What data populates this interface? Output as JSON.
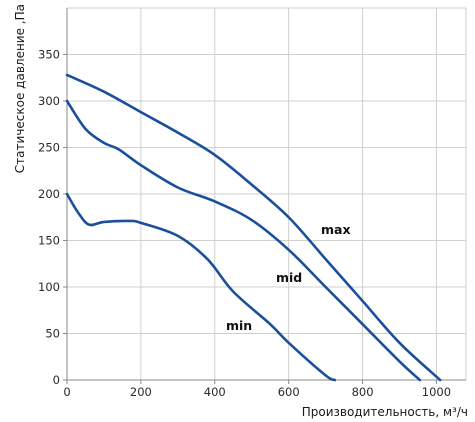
{
  "chart_data": {
    "type": "line",
    "xlabel": "Производительность, м³/ч",
    "ylabel": "Статическое давление ,Па",
    "xlim": [
      0,
      1080
    ],
    "ylim": [
      0,
      400
    ],
    "xticks": [
      0,
      200,
      400,
      600,
      800,
      1000
    ],
    "yticks": [
      0,
      50,
      100,
      150,
      200,
      250,
      300,
      350
    ],
    "grid": true,
    "line_color": "#1b4f9c",
    "series": [
      {
        "name": "max",
        "points": [
          [
            0,
            328
          ],
          [
            100,
            310
          ],
          [
            200,
            288
          ],
          [
            300,
            266
          ],
          [
            400,
            242
          ],
          [
            500,
            210
          ],
          [
            600,
            175
          ],
          [
            700,
            130
          ],
          [
            800,
            85
          ],
          [
            900,
            40
          ],
          [
            1010,
            0
          ]
        ]
      },
      {
        "name": "mid",
        "points": [
          [
            0,
            300
          ],
          [
            50,
            270
          ],
          [
            100,
            255
          ],
          [
            140,
            248
          ],
          [
            200,
            231
          ],
          [
            300,
            207
          ],
          [
            400,
            192
          ],
          [
            500,
            172
          ],
          [
            600,
            140
          ],
          [
            700,
            100
          ],
          [
            800,
            60
          ],
          [
            900,
            20
          ],
          [
            955,
            0
          ]
        ]
      },
      {
        "name": "min",
        "points": [
          [
            0,
            200
          ],
          [
            30,
            180
          ],
          [
            60,
            167
          ],
          [
            100,
            170
          ],
          [
            170,
            171
          ],
          [
            200,
            169
          ],
          [
            300,
            155
          ],
          [
            380,
            130
          ],
          [
            450,
            95
          ],
          [
            550,
            60
          ],
          [
            600,
            40
          ],
          [
            700,
            5
          ],
          [
            725,
            0
          ]
        ]
      }
    ]
  }
}
